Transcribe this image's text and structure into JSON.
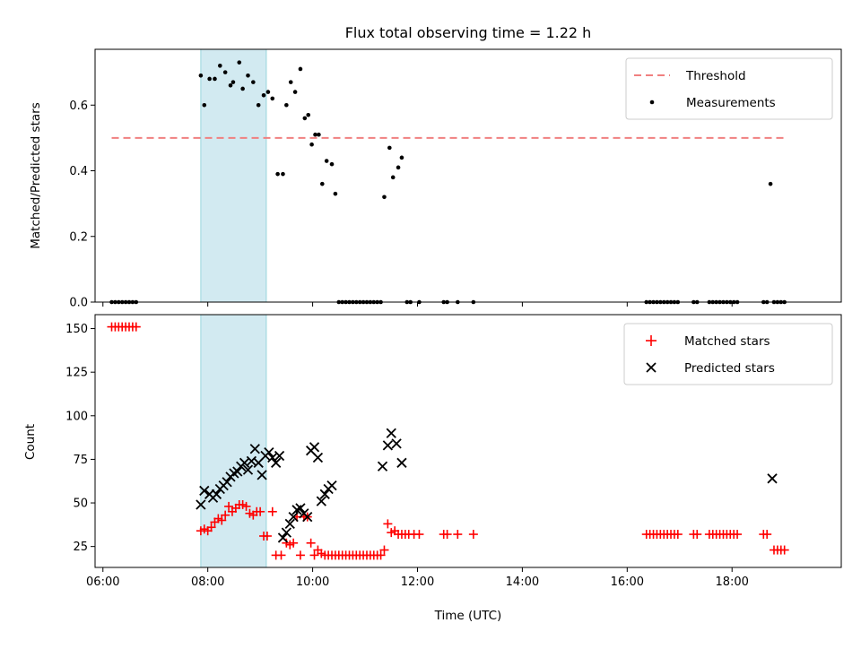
{
  "chart_data": [
    {
      "type": "scatter",
      "title": "Flux total observing time = 1.22 h",
      "xlabel": "",
      "ylabel": "Matched/Predicted stars",
      "xlim": [
        "05:51",
        "20:05"
      ],
      "ylim": [
        0,
        0.77
      ],
      "yticks": [
        0.0,
        0.2,
        0.4,
        0.6
      ],
      "ytick_labels": [
        "0.0",
        "0.2",
        "0.4",
        "0.6"
      ],
      "xticks": [
        "06:00",
        "08:00",
        "10:00",
        "12:00",
        "14:00",
        "16:00",
        "18:00"
      ],
      "shaded_interval": {
        "x": [
          "07:52",
          "09:07"
        ],
        "color": "#add8e6"
      },
      "legend": {
        "placement": "upper right",
        "entries": [
          "Threshold",
          "Measurements"
        ]
      },
      "series": [
        {
          "name": "Threshold",
          "kind": "dashed-line",
          "color": "#f08080",
          "x": [
            "06:10",
            "19:00"
          ],
          "y": [
            0.5,
            0.5
          ]
        },
        {
          "name": "Measurements",
          "kind": "points",
          "color": "#000000",
          "x": [
            "06:10",
            "06:14",
            "06:18",
            "06:22",
            "06:26",
            "06:30",
            "06:34",
            "06:38",
            "07:52",
            "07:56",
            "08:02",
            "08:08",
            "08:14",
            "08:20",
            "08:26",
            "08:29",
            "08:36",
            "08:40",
            "08:46",
            "08:52",
            "08:58",
            "09:04",
            "09:09",
            "09:14",
            "09:20",
            "09:26",
            "09:30",
            "09:35",
            "09:40",
            "09:46",
            "09:51",
            "09:55",
            "09:59",
            "10:03",
            "10:07",
            "10:11",
            "10:16",
            "10:22",
            "10:26",
            "10:30",
            "10:34",
            "10:38",
            "10:42",
            "10:46",
            "10:50",
            "10:54",
            "10:58",
            "11:02",
            "11:06",
            "11:10",
            "11:14",
            "11:18",
            "11:22",
            "11:28",
            "11:32",
            "11:38",
            "11:42",
            "11:48",
            "11:52",
            "12:02",
            "12:30",
            "12:34",
            "12:46",
            "13:04",
            "16:22",
            "16:26",
            "16:30",
            "16:34",
            "16:38",
            "16:42",
            "16:46",
            "16:50",
            "16:54",
            "16:58",
            "17:16",
            "17:20",
            "17:34",
            "17:38",
            "17:42",
            "17:46",
            "17:50",
            "17:54",
            "17:58",
            "18:02",
            "18:06",
            "18:36",
            "18:40",
            "18:44",
            "18:48",
            "18:52",
            "18:56",
            "19:00"
          ],
          "y": [
            0,
            0,
            0,
            0,
            0,
            0,
            0,
            0,
            0.69,
            0.6,
            0.68,
            0.68,
            0.72,
            0.7,
            0.66,
            0.67,
            0.73,
            0.65,
            0.69,
            0.67,
            0.6,
            0.63,
            0.64,
            0.62,
            0.39,
            0.39,
            0.6,
            0.67,
            0.64,
            0.71,
            0.56,
            0.57,
            0.48,
            0.51,
            0.51,
            0.36,
            0.43,
            0.42,
            0.33,
            0,
            0,
            0,
            0,
            0,
            0,
            0,
            0,
            0,
            0,
            0,
            0,
            0,
            0.32,
            0.47,
            0.38,
            0.41,
            0.44,
            0,
            0,
            0,
            0,
            0,
            0,
            0,
            0,
            0,
            0,
            0,
            0,
            0,
            0,
            0,
            0,
            0,
            0,
            0,
            0,
            0,
            0,
            0,
            0,
            0,
            0,
            0,
            0,
            0,
            0,
            0.36,
            0,
            0,
            0,
            0
          ]
        }
      ]
    },
    {
      "type": "scatter",
      "title": "",
      "xlabel": "Time (UTC)",
      "ylabel": "Count",
      "xlim": [
        "05:51",
        "20:05"
      ],
      "ylim": [
        13,
        158
      ],
      "yticks": [
        25,
        50,
        75,
        100,
        125,
        150
      ],
      "ytick_labels": [
        "25",
        "50",
        "75",
        "100",
        "125",
        "150"
      ],
      "xticks": [
        "06:00",
        "08:00",
        "10:00",
        "12:00",
        "14:00",
        "16:00",
        "18:00"
      ],
      "xtick_labels": [
        "06:00",
        "08:00",
        "10:00",
        "12:00",
        "14:00",
        "16:00",
        "18:00"
      ],
      "shaded_interval": {
        "x": [
          "07:52",
          "09:07"
        ],
        "color": "#add8e6"
      },
      "legend": {
        "placement": "upper right",
        "entries": [
          "Matched stars",
          "Predicted stars"
        ]
      },
      "series": [
        {
          "name": "Matched stars",
          "marker": "plus",
          "color": "#ff0000",
          "x": [
            "06:10",
            "06:14",
            "06:18",
            "06:22",
            "06:26",
            "06:30",
            "06:34",
            "06:38",
            "07:52",
            "07:56",
            "08:00",
            "08:04",
            "08:08",
            "08:12",
            "08:16",
            "08:20",
            "08:24",
            "08:28",
            "08:32",
            "08:36",
            "08:40",
            "08:44",
            "08:48",
            "08:52",
            "08:56",
            "09:00",
            "09:04",
            "09:08",
            "09:14",
            "09:18",
            "09:24",
            "09:30",
            "09:34",
            "09:38",
            "09:42",
            "09:46",
            "09:50",
            "09:54",
            "09:58",
            "10:02",
            "10:06",
            "10:10",
            "10:14",
            "10:18",
            "10:22",
            "10:26",
            "10:30",
            "10:34",
            "10:38",
            "10:42",
            "10:46",
            "10:50",
            "10:54",
            "10:58",
            "11:02",
            "11:06",
            "11:10",
            "11:14",
            "11:18",
            "11:22",
            "11:26",
            "11:30",
            "11:34",
            "11:38",
            "11:42",
            "11:46",
            "11:50",
            "11:56",
            "12:02",
            "12:30",
            "12:34",
            "12:46",
            "13:04",
            "16:22",
            "16:26",
            "16:30",
            "16:34",
            "16:38",
            "16:42",
            "16:46",
            "16:50",
            "16:54",
            "16:58",
            "17:16",
            "17:20",
            "17:34",
            "17:38",
            "17:42",
            "17:46",
            "17:50",
            "17:54",
            "17:58",
            "18:02",
            "18:06",
            "18:36",
            "18:40",
            "18:48",
            "18:52",
            "18:56",
            "19:00"
          ],
          "y": [
            151,
            151,
            151,
            151,
            151,
            151,
            151,
            151,
            34,
            35,
            34,
            36,
            39,
            41,
            40,
            43,
            48,
            45,
            47,
            49,
            49,
            48,
            44,
            43,
            45,
            45,
            31,
            31,
            45,
            20,
            20,
            27,
            26,
            27,
            42,
            20,
            42,
            42,
            27,
            20,
            23,
            21,
            20,
            20,
            20,
            20,
            20,
            20,
            20,
            20,
            20,
            20,
            20,
            20,
            20,
            20,
            20,
            20,
            20,
            23,
            38,
            33,
            34,
            32,
            32,
            32,
            32,
            32,
            32,
            32,
            32,
            32,
            32,
            32,
            32,
            32,
            32,
            32,
            32,
            32,
            32,
            32,
            32,
            32,
            32,
            32,
            32,
            32,
            32,
            32,
            32,
            32,
            32,
            32,
            32,
            32,
            23,
            23,
            23,
            23
          ]
        },
        {
          "name": "Predicted stars",
          "marker": "x",
          "color": "#000000",
          "x": [
            "07:52",
            "07:56",
            "08:02",
            "08:06",
            "08:10",
            "08:14",
            "08:18",
            "08:22",
            "08:26",
            "08:30",
            "08:34",
            "08:38",
            "08:42",
            "08:46",
            "08:50",
            "08:54",
            "08:58",
            "09:02",
            "09:06",
            "09:10",
            "09:14",
            "09:18",
            "09:22",
            "09:26",
            "09:30",
            "09:34",
            "09:38",
            "09:42",
            "09:46",
            "09:50",
            "09:54",
            "09:58",
            "10:02",
            "10:06",
            "10:10",
            "10:14",
            "10:18",
            "10:22",
            "11:20",
            "11:26",
            "11:30",
            "11:36",
            "11:42",
            "18:46"
          ],
          "y": [
            49,
            57,
            55,
            53,
            55,
            58,
            60,
            62,
            65,
            67,
            68,
            71,
            73,
            69,
            74,
            81,
            73,
            66,
            77,
            79,
            76,
            73,
            77,
            30,
            33,
            38,
            42,
            46,
            47,
            44,
            42,
            80,
            82,
            76,
            51,
            55,
            58,
            60,
            71,
            83,
            90,
            84,
            73,
            64
          ]
        }
      ]
    }
  ]
}
